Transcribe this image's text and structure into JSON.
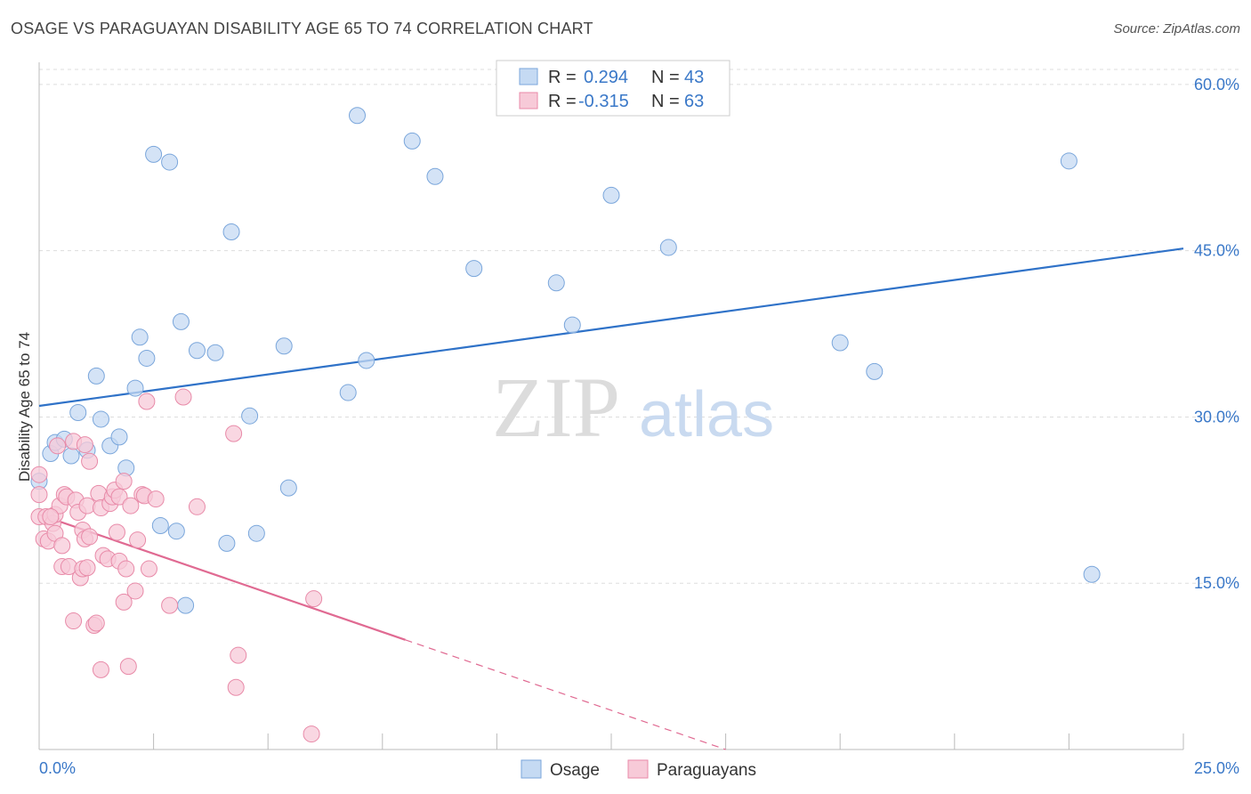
{
  "title": "OSAGE VS PARAGUAYAN DISABILITY AGE 65 TO 74 CORRELATION CHART",
  "source": "Source: ZipAtlas.com",
  "watermark": {
    "zip": "ZIP",
    "atlas": "atlas"
  },
  "legend": {
    "rows": [
      {
        "r_label": "R =",
        "r_value": "0.294",
        "n_label": "N =",
        "n_value": "43"
      },
      {
        "r_label": "R =",
        "r_value": "-0.315",
        "n_label": "N =",
        "n_value": "63"
      }
    ]
  },
  "bottom_legend": [
    "Osage",
    "Paraguayans"
  ],
  "colors": {
    "osage_fill": "#c5daf3",
    "osage_stroke": "#7aa6db",
    "osage_line": "#2f72c8",
    "para_fill": "#f7cad8",
    "para_stroke": "#e88aa8",
    "para_line": "#e06a92",
    "tick_text": "#3a78c8",
    "grid": "#dddddd"
  },
  "chart_data": {
    "type": "scatter",
    "title": "OSAGE VS PARAGUAYAN DISABILITY AGE 65 TO 74 CORRELATION CHART",
    "xlabel": "",
    "ylabel": "Disability Age 65 to 74",
    "xlim": [
      0,
      25
    ],
    "ylim": [
      0,
      62
    ],
    "x_tick_labels": [
      "0.0%",
      "25.0%"
    ],
    "y_ticks": [
      15,
      30,
      45,
      60
    ],
    "y_tick_labels": [
      "15.0%",
      "30.0%",
      "45.0%",
      "60.0%"
    ],
    "grid": true,
    "legend_position": "top-center",
    "series": [
      {
        "name": "Osage",
        "r": 0.294,
        "n": 43,
        "trend": {
          "x": [
            0,
            25
          ],
          "y": [
            31.0,
            45.2
          ],
          "dashed_from_x": null
        },
        "points": [
          [
            0.0,
            24.2
          ],
          [
            0.25,
            26.7
          ],
          [
            0.35,
            27.7
          ],
          [
            0.55,
            28.0
          ],
          [
            0.7,
            26.5
          ],
          [
            0.85,
            30.4
          ],
          [
            1.05,
            27.0
          ],
          [
            1.25,
            33.7
          ],
          [
            1.35,
            29.8
          ],
          [
            1.55,
            27.4
          ],
          [
            1.75,
            28.2
          ],
          [
            1.9,
            25.4
          ],
          [
            2.1,
            32.6
          ],
          [
            2.2,
            37.2
          ],
          [
            2.35,
            35.3
          ],
          [
            2.5,
            53.7
          ],
          [
            2.65,
            20.2
          ],
          [
            2.85,
            53.0
          ],
          [
            3.0,
            19.7
          ],
          [
            3.1,
            38.6
          ],
          [
            3.2,
            13.0
          ],
          [
            3.45,
            36.0
          ],
          [
            3.85,
            35.8
          ],
          [
            4.1,
            18.6
          ],
          [
            4.2,
            46.7
          ],
          [
            4.6,
            30.1
          ],
          [
            4.75,
            19.5
          ],
          [
            5.35,
            36.4
          ],
          [
            5.45,
            23.6
          ],
          [
            6.75,
            32.2
          ],
          [
            6.95,
            57.2
          ],
          [
            7.15,
            35.1
          ],
          [
            8.15,
            54.9
          ],
          [
            8.65,
            51.7
          ],
          [
            9.5,
            43.4
          ],
          [
            11.3,
            42.1
          ],
          [
            11.65,
            38.3
          ],
          [
            12.5,
            50.0
          ],
          [
            13.75,
            45.3
          ],
          [
            17.5,
            36.7
          ],
          [
            18.25,
            34.1
          ],
          [
            22.5,
            53.1
          ],
          [
            23.0,
            15.8
          ]
        ]
      },
      {
        "name": "Paraguayans",
        "r": -0.315,
        "n": 63,
        "trend": {
          "x": [
            0,
            15
          ],
          "y": [
            21.2,
            0.0
          ],
          "dashed_from_x": 8.0
        },
        "points": [
          [
            0.0,
            24.8
          ],
          [
            0.0,
            23.0
          ],
          [
            0.0,
            21.0
          ],
          [
            0.1,
            19.0
          ],
          [
            0.15,
            21.0
          ],
          [
            0.2,
            18.8
          ],
          [
            0.3,
            20.4
          ],
          [
            0.35,
            21.2
          ],
          [
            0.35,
            19.5
          ],
          [
            0.4,
            27.4
          ],
          [
            0.45,
            22.0
          ],
          [
            0.5,
            18.4
          ],
          [
            0.5,
            16.5
          ],
          [
            0.55,
            23.0
          ],
          [
            0.6,
            22.8
          ],
          [
            0.65,
            16.5
          ],
          [
            0.75,
            27.8
          ],
          [
            0.75,
            11.6
          ],
          [
            0.8,
            22.5
          ],
          [
            0.85,
            21.4
          ],
          [
            0.9,
            15.5
          ],
          [
            0.95,
            16.3
          ],
          [
            0.95,
            19.8
          ],
          [
            1.0,
            27.5
          ],
          [
            1.0,
            19.0
          ],
          [
            1.05,
            16.4
          ],
          [
            1.05,
            22.0
          ],
          [
            1.1,
            26.0
          ],
          [
            1.1,
            19.2
          ],
          [
            1.2,
            11.2
          ],
          [
            1.25,
            11.4
          ],
          [
            1.3,
            23.1
          ],
          [
            1.35,
            21.8
          ],
          [
            1.35,
            7.2
          ],
          [
            1.4,
            17.5
          ],
          [
            1.5,
            17.2
          ],
          [
            1.55,
            22.2
          ],
          [
            1.6,
            22.8
          ],
          [
            1.65,
            23.4
          ],
          [
            1.7,
            19.6
          ],
          [
            1.75,
            17.0
          ],
          [
            1.75,
            22.8
          ],
          [
            1.85,
            24.2
          ],
          [
            1.85,
            13.3
          ],
          [
            1.9,
            16.3
          ],
          [
            1.95,
            7.5
          ],
          [
            2.0,
            22.0
          ],
          [
            2.1,
            14.3
          ],
          [
            2.15,
            18.9
          ],
          [
            2.25,
            23.0
          ],
          [
            2.3,
            22.9
          ],
          [
            2.35,
            31.4
          ],
          [
            2.4,
            16.3
          ],
          [
            2.55,
            22.6
          ],
          [
            2.85,
            13.0
          ],
          [
            3.15,
            31.8
          ],
          [
            3.45,
            21.9
          ],
          [
            4.25,
            28.5
          ],
          [
            4.3,
            5.6
          ],
          [
            4.35,
            8.5
          ],
          [
            5.95,
            1.4
          ],
          [
            6.0,
            13.6
          ],
          [
            0.25,
            21.0
          ]
        ]
      }
    ]
  }
}
